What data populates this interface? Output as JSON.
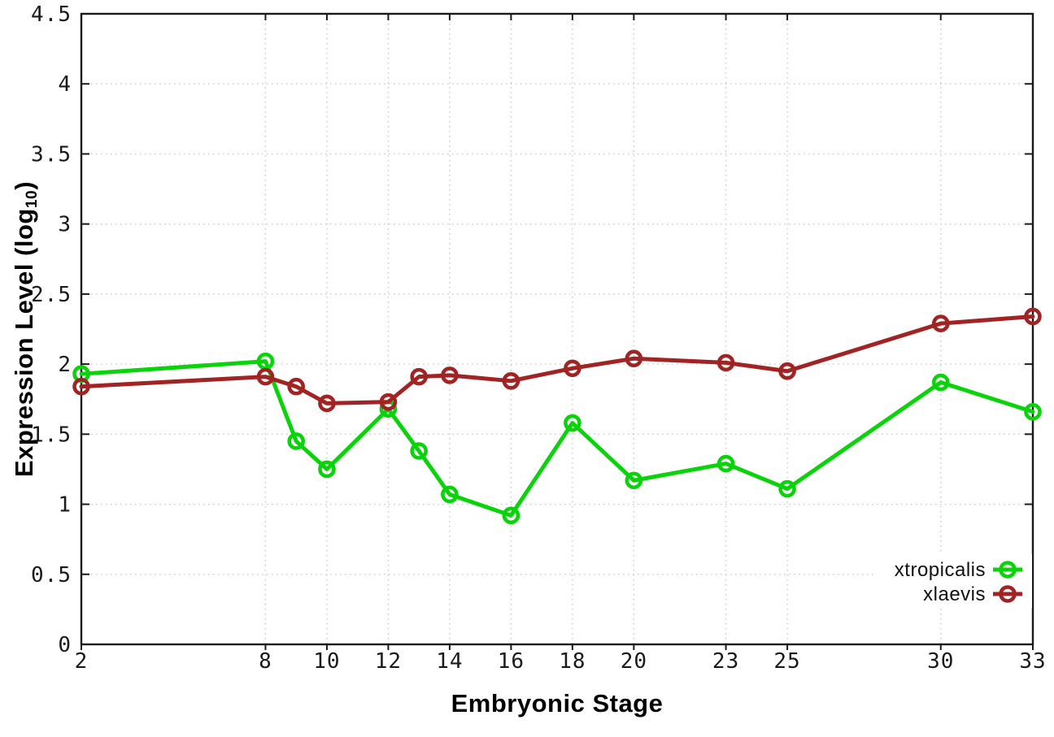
{
  "chart_data": {
    "type": "line",
    "title": "",
    "xlabel": "Embryonic Stage",
    "ylabel_main": "Expression Level (log",
    "ylabel_sub": "10",
    "ylabel_close": ")",
    "x": [
      2,
      8,
      9,
      10,
      12,
      13,
      14,
      16,
      18,
      20,
      23,
      25,
      30,
      33
    ],
    "series": [
      {
        "name": "xtropicalis",
        "color": "#0bd30b",
        "values": [
          1.93,
          2.02,
          1.45,
          1.25,
          1.68,
          1.38,
          1.07,
          0.92,
          1.58,
          1.17,
          1.29,
          1.11,
          1.87,
          1.66
        ]
      },
      {
        "name": "xlaevis",
        "color": "#a12424",
        "values": [
          1.84,
          1.91,
          1.84,
          1.72,
          1.73,
          1.91,
          1.92,
          1.88,
          1.97,
          2.04,
          2.01,
          1.95,
          2.29,
          2.34
        ]
      }
    ],
    "x_ticks": [
      2,
      8,
      10,
      12,
      14,
      16,
      18,
      20,
      23,
      25,
      30,
      33
    ],
    "x_tick_labels": [
      "2",
      "8",
      "10",
      "12",
      "14",
      "16",
      "18",
      "20",
      "23",
      "25",
      "30",
      "33"
    ],
    "y_ticks": [
      0,
      0.5,
      1,
      1.5,
      2,
      2.5,
      3,
      3.5,
      4,
      4.5
    ],
    "y_tick_labels": [
      "0",
      "0.5",
      "1",
      "1.5",
      "2",
      "2.5",
      "3",
      "3.5",
      "4",
      "4.5"
    ],
    "xlim": [
      2,
      33
    ],
    "ylim": [
      0,
      4.5
    ],
    "grid": true,
    "marker": "open-circle",
    "legend_position": "bottom-right",
    "legend_entries": [
      "xtropicalis",
      "xlaevis"
    ],
    "colors": {
      "grid": "#c8c8c8",
      "axis": "#1a1a1a",
      "text": "#000000",
      "background": "#ffffff"
    }
  }
}
